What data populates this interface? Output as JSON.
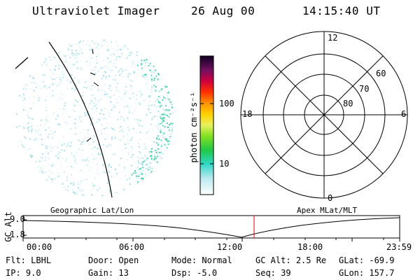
{
  "header": {
    "title": "Ultraviolet Imager",
    "date": "26 Aug 00",
    "time": "14:15:40 UT"
  },
  "colorbar": {
    "label": "photon cm⁻²s⁻¹",
    "ticks": [
      "100",
      "10"
    ]
  },
  "polar": {
    "mlt_labels": {
      "top": "12",
      "left": "18",
      "right": "6",
      "bottom": "0"
    },
    "lat_labels": [
      "60",
      "70",
      "80"
    ]
  },
  "timeline": {
    "left_label": "Geographic Lat/Lon",
    "right_label": "Apex MLat/MLT",
    "axis_title": "GC Alt",
    "y_ticks": [
      "9.0",
      "1.8"
    ],
    "x_ticks": [
      "00:00",
      "06:00",
      "12:00",
      "18:00",
      "23:59"
    ],
    "current_marker_color": "#e00000"
  },
  "info": {
    "row1": [
      {
        "key": "Flt:",
        "value": "LBHL"
      },
      {
        "key": "Door:",
        "value": "Open"
      },
      {
        "key": "Mode:",
        "value": "Normal"
      },
      {
        "key": "GC Alt:",
        "value": "2.5 Re"
      },
      {
        "key": "GLat:",
        "value": "-69.9"
      }
    ],
    "row2": [
      {
        "key": "IP:",
        "value": "9.0"
      },
      {
        "key": "Gain:",
        "value": "13"
      },
      {
        "key": "Dsp:",
        "value": "-5.0"
      },
      {
        "key": "Seq:",
        "value": "39"
      },
      {
        "key": "GLon:",
        "value": "157.7"
      }
    ]
  }
}
